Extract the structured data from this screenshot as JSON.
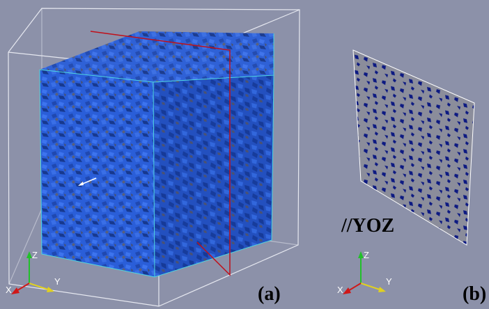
{
  "panels": [
    {
      "label": "(a)",
      "axes": {
        "x": "X",
        "y": "Y",
        "z": "Z"
      }
    },
    {
      "label": "(b)",
      "plane_label": "//YOZ",
      "axes": {
        "x": "X",
        "y": "Y",
        "z": "Z"
      }
    }
  ]
}
